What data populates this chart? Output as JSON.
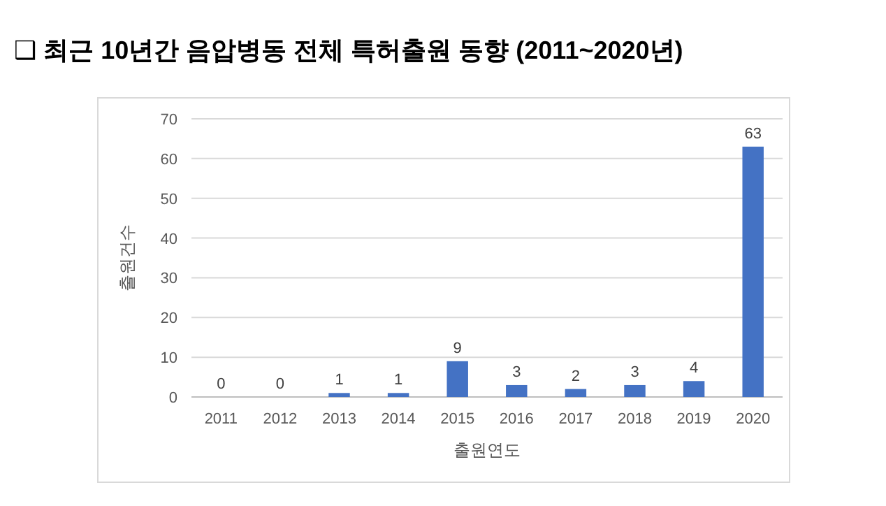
{
  "chart_data": {
    "type": "bar",
    "title": "❑ 최근 10년간 음압병동 전체 특허출원 동향 (2011~2020년)",
    "xlabel": "출원연도",
    "ylabel": "출원건수",
    "categories": [
      "2011",
      "2012",
      "2013",
      "2014",
      "2015",
      "2016",
      "2017",
      "2018",
      "2019",
      "2020"
    ],
    "values": [
      0,
      0,
      1,
      1,
      9,
      3,
      2,
      3,
      4,
      63
    ],
    "color": "#4472c4",
    "ylim": [
      0,
      70
    ],
    "yticks": [
      0,
      10,
      20,
      30,
      40,
      50,
      60,
      70
    ],
    "grid": "y",
    "data_labels": true
  }
}
